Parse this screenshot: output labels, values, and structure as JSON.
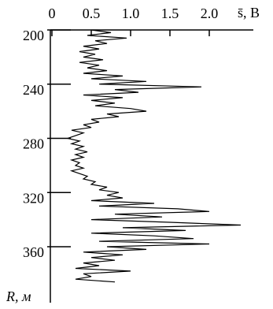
{
  "chart_data": {
    "type": "line",
    "x_label": "s̄, В",
    "y_label": "R, м",
    "xlim": [
      0,
      2.54
    ],
    "xticks": [
      0,
      0.5,
      {
        "value": 1.0,
        "label": "1.0"
      },
      1.5,
      {
        "value": 2.0,
        "label": "2.0"
      }
    ],
    "ylim": [
      200,
      399
    ],
    "yticks": [
      200,
      240,
      280,
      320,
      360
    ],
    "color": "#000000",
    "x": [
      200,
      202,
      204,
      206,
      208,
      210,
      212,
      214,
      216,
      218,
      220,
      222,
      224,
      226,
      228,
      230,
      232,
      234,
      236,
      238,
      240,
      242,
      244,
      246,
      248,
      250,
      252,
      254,
      256,
      258,
      260,
      262,
      264,
      266,
      268,
      270,
      272,
      274,
      276,
      278,
      280,
      282,
      284,
      286,
      288,
      290,
      292,
      294,
      296,
      298,
      300,
      302,
      304,
      306,
      308,
      310,
      312,
      314,
      316,
      318,
      320,
      322,
      324,
      326,
      328,
      330,
      332,
      334,
      336,
      338,
      340,
      342,
      344,
      346,
      348,
      350,
      352,
      354,
      356,
      358,
      360,
      362,
      364,
      366,
      368,
      370,
      372,
      374,
      376,
      378,
      380,
      382,
      384,
      386
    ],
    "values": [
      0.5,
      0.75,
      0.45,
      0.95,
      0.55,
      0.7,
      0.4,
      0.6,
      0.35,
      0.55,
      0.4,
      0.65,
      0.35,
      0.6,
      0.45,
      0.7,
      0.4,
      0.9,
      0.5,
      1.2,
      0.6,
      1.9,
      0.8,
      1.1,
      0.4,
      0.9,
      0.5,
      0.8,
      0.55,
      1.0,
      1.2,
      0.7,
      0.85,
      0.5,
      0.6,
      0.4,
      0.5,
      0.25,
      0.4,
      0.3,
      0.2,
      0.35,
      0.25,
      0.4,
      0.3,
      0.45,
      0.3,
      0.4,
      0.25,
      0.35,
      0.3,
      0.4,
      0.25,
      0.35,
      0.45,
      0.4,
      0.55,
      0.5,
      0.7,
      0.6,
      0.85,
      0.7,
      0.9,
      0.5,
      1.3,
      0.6,
      1.6,
      2.0,
      0.8,
      1.4,
      0.5,
      1.5,
      2.4,
      0.9,
      1.7,
      0.5,
      1.3,
      1.8,
      0.6,
      2.0,
      0.7,
      1.2,
      0.4,
      0.9,
      0.5,
      0.8,
      0.4,
      0.6,
      0.3,
      1.0,
      0.4,
      0.5,
      0.3,
      0.8
    ]
  }
}
